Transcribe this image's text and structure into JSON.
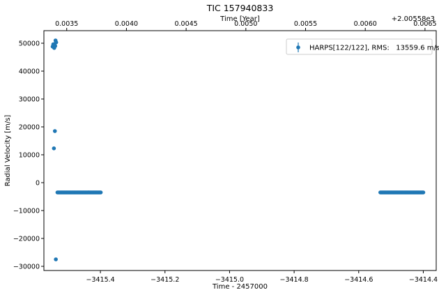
{
  "chart_data": {
    "type": "scatter",
    "title": "TIC 157940833",
    "xlabel": "Time - 2457000",
    "ylabel": "Radial Velocity [m/s]",
    "top_xlabel": "Time [Year]",
    "top_offset": "+2.00558e3",
    "xlim": [
      -3415.575,
      -3414.36
    ],
    "ylim": [
      -31500,
      54500
    ],
    "top_xlim": [
      0.003309,
      0.006594
    ],
    "x_ticks": [
      -3415.4,
      -3415.2,
      -3415.0,
      -3414.8,
      -3414.6,
      -3414.4
    ],
    "x_tick_labels": [
      "−3415.4",
      "−3415.2",
      "−3415.0",
      "−3414.8",
      "−3414.6",
      "−3414.4"
    ],
    "y_ticks": [
      -30000,
      -20000,
      -10000,
      0,
      10000,
      20000,
      30000,
      40000,
      50000
    ],
    "y_tick_labels": [
      "−30000",
      "−20000",
      "−10000",
      "0",
      "10000",
      "20000",
      "30000",
      "40000",
      "50000"
    ],
    "top_ticks": [
      0.0035,
      0.004,
      0.0045,
      0.005,
      0.0055,
      0.006,
      0.0065
    ],
    "top_tick_labels": [
      "0.0035",
      "0.0040",
      "0.0045",
      "0.0050",
      "0.0055",
      "0.0060",
      "0.0065"
    ],
    "grid": false,
    "legend_position": "top-right",
    "series": [
      {
        "name": "HARPS[122/122], RMS:   13559.6 m/s",
        "color": "#1f77b4",
        "marker": "circle",
        "points": [
          {
            "x": -3415.548,
            "y": 48800
          },
          {
            "x": -3415.546,
            "y": 49600
          },
          {
            "x": -3415.544,
            "y": 49200
          },
          {
            "x": -3415.543,
            "y": 48300
          },
          {
            "x": -3415.542,
            "y": 49500
          },
          {
            "x": -3415.54,
            "y": 49000
          },
          {
            "x": -3415.539,
            "y": 51000
          },
          {
            "x": -3415.538,
            "y": 50400
          },
          {
            "x": -3415.537,
            "y": 50300
          },
          {
            "x": -3415.544,
            "y": 12300
          },
          {
            "x": -3415.541,
            "y": 18500
          },
          {
            "x": -3415.538,
            "y": -27500
          }
        ],
        "segments": [
          {
            "x_start": -3415.533,
            "x_end": -3415.399,
            "y": -3500,
            "count": 55
          },
          {
            "x_start": -3414.533,
            "x_end": -3414.4,
            "y": -3500,
            "count": 55
          }
        ]
      }
    ]
  }
}
